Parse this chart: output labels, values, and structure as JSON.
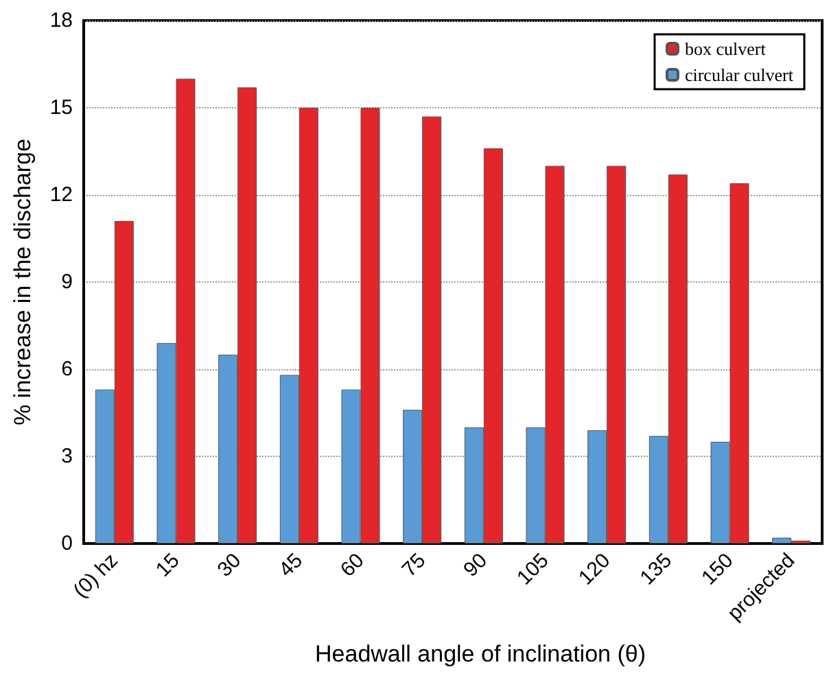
{
  "chart_data": {
    "type": "bar",
    "xlabel": "Headwall angle of inclination (θ)",
    "ylabel": "% increase in the discharge",
    "categories": [
      "(0) hz",
      "15",
      "30",
      "45",
      "60",
      "75",
      "90",
      "105",
      "120",
      "135",
      "150",
      "projected"
    ],
    "series": [
      {
        "name": "circular culvert",
        "color": "#5b9bd5",
        "values": [
          5.3,
          6.9,
          6.5,
          5.8,
          5.3,
          4.6,
          4.0,
          4.0,
          3.9,
          3.7,
          3.5,
          0.2
        ]
      },
      {
        "name": "box culvert",
        "color": "#e3262b",
        "values": [
          11.1,
          16.0,
          15.7,
          15.0,
          15.0,
          14.7,
          13.6,
          13.0,
          13.0,
          12.7,
          12.4,
          0.1
        ]
      }
    ],
    "ylim": [
      0,
      18
    ],
    "yticks": [
      0,
      3,
      6,
      9,
      12,
      15,
      18
    ],
    "grid": "y",
    "legend": "top right"
  }
}
